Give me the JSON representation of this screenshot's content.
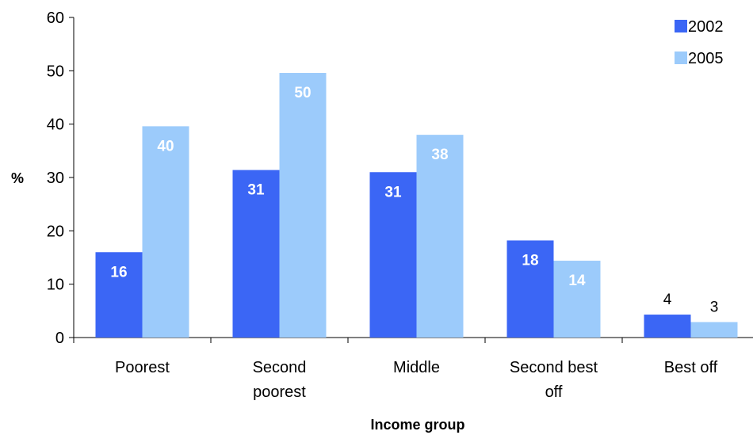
{
  "chart_data": {
    "type": "bar",
    "title": "",
    "xlabel": "Income group",
    "ylabel": "%",
    "ylim": [
      0,
      60
    ],
    "yticks": [
      0,
      10,
      20,
      30,
      40,
      50,
      60
    ],
    "grid": false,
    "legend_position": "top-right",
    "categories": [
      "Poorest",
      "Second poorest",
      "Middle",
      "Second best off",
      "Best off"
    ],
    "category_label_lines": [
      [
        "Poorest"
      ],
      [
        "Second",
        "poorest"
      ],
      [
        "Middle"
      ],
      [
        "Second best",
        "off"
      ],
      [
        "Best off"
      ]
    ],
    "series": [
      {
        "name": "2002",
        "color": "#3b66f5",
        "values": [
          16,
          31,
          31,
          18,
          4
        ],
        "value_heights": [
          16.0,
          31.4,
          31.0,
          18.2,
          4.3
        ]
      },
      {
        "name": "2005",
        "color": "#9ccbfb",
        "values": [
          40,
          50,
          38,
          14,
          3
        ],
        "value_heights": [
          39.6,
          49.6,
          38.0,
          14.4,
          2.9
        ]
      }
    ]
  }
}
